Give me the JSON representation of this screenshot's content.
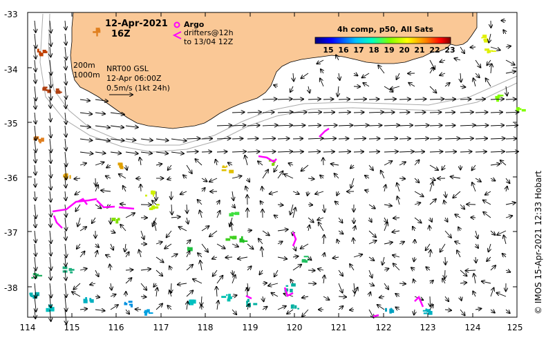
{
  "title": {
    "date": "12-Apr-2021",
    "time": "16Z"
  },
  "legend": {
    "argo": "Argo",
    "drifters_line1": "drifters@12h",
    "drifters_line2": "to 13/04 12Z",
    "argo_color": "#ff00ff"
  },
  "depth_labels": [
    "200m",
    "1000m"
  ],
  "product": {
    "line1": "NRT00 GSL",
    "line2": "12-Apr 06:00Z",
    "line3": "0.5m/s (1kt 24h)"
  },
  "colorbar": {
    "title": "4h comp, p50, All Sats",
    "ticks": [
      "15",
      "16",
      "17",
      "18",
      "19",
      "20",
      "21",
      "22",
      "23"
    ],
    "colors": [
      "#00007f",
      "#0000ff",
      "#0080ff",
      "#00ffff",
      "#80ff80",
      "#ffff00",
      "#ff8000",
      "#ff0000",
      "#7f0000"
    ]
  },
  "axes": {
    "lat_ticks": [
      "-33",
      "-34",
      "-35",
      "-36",
      "-37",
      "-38"
    ],
    "lon_ticks": [
      "114",
      "115",
      "116",
      "117",
      "118",
      "119",
      "120",
      "121",
      "122",
      "123",
      "124",
      "125"
    ],
    "lon_range": [
      114,
      125
    ],
    "lat_range": [
      -38.5,
      -33
    ]
  },
  "colors": {
    "land": "#fac896",
    "arrows": "#000000",
    "contours": "#aaaaaa",
    "drifters": "#ff00ff"
  },
  "credit": "© IMOS 15-Apr-2021 12:33 Hobart"
}
